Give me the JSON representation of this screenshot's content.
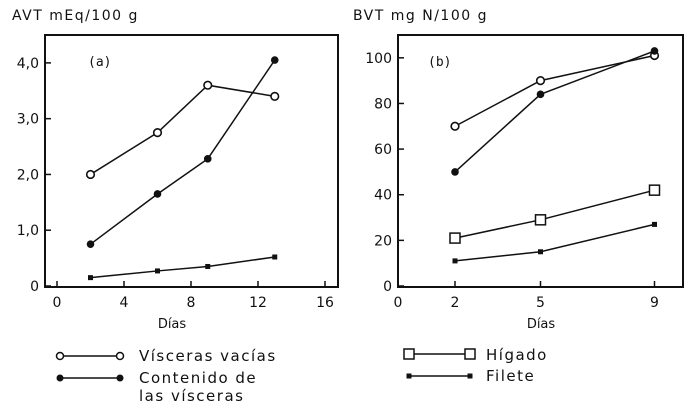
{
  "chart_data": [
    {
      "type": "line",
      "title": "AVT mEq/100 g",
      "panel_label": "(a)",
      "xlabel": "Días",
      "ylabel": "AVT mEq/100 g",
      "xlim": [
        0,
        16
      ],
      "ylim": [
        0,
        4.5
      ],
      "xticks": [
        0,
        4,
        8,
        12,
        16
      ],
      "xtick_labels": [
        "0",
        "4",
        "8",
        "12",
        "16"
      ],
      "yticks": [
        0,
        1,
        2,
        3,
        4
      ],
      "ytick_labels": [
        "0",
        "1,0",
        "2,0",
        "3,0",
        "4,0"
      ],
      "series": [
        {
          "name": "Vísceras vacías",
          "marker": "open-circle",
          "x": [
            2,
            6,
            9,
            13
          ],
          "values": [
            2.0,
            2.75,
            3.6,
            3.4
          ]
        },
        {
          "name": "Contenido de las vísceras",
          "marker": "filled-circle",
          "x": [
            2,
            6,
            9,
            13
          ],
          "values": [
            0.75,
            1.65,
            2.28,
            4.05
          ]
        },
        {
          "name": "Filete",
          "marker": "small-square",
          "x": [
            2,
            6,
            9,
            13
          ],
          "values": [
            0.15,
            0.27,
            0.35,
            0.52
          ]
        }
      ]
    },
    {
      "type": "line",
      "title": "BVT mg N/100 g",
      "panel_label": "(b)",
      "xlabel": "Días",
      "ylabel": "BVT mg N/100 g",
      "xlim": [
        0,
        10
      ],
      "ylim": [
        0,
        110
      ],
      "xticks": [
        0,
        2,
        5,
        9
      ],
      "xtick_labels": [
        "0",
        "2",
        "5",
        "9"
      ],
      "yticks": [
        0,
        20,
        40,
        60,
        80,
        100
      ],
      "ytick_labels": [
        "0",
        "20",
        "40",
        "60",
        "80",
        "100"
      ],
      "series": [
        {
          "name": "Vísceras vacías",
          "marker": "open-circle",
          "x": [
            2,
            5,
            9
          ],
          "values": [
            70,
            90,
            101
          ]
        },
        {
          "name": "Contenido de las vísceras",
          "marker": "filled-circle",
          "x": [
            2,
            5,
            9
          ],
          "values": [
            50,
            84,
            103
          ]
        },
        {
          "name": "Hígado",
          "marker": "open-square",
          "x": [
            2,
            5,
            9
          ],
          "values": [
            21,
            29,
            42
          ]
        },
        {
          "name": "Filete",
          "marker": "small-square",
          "x": [
            2,
            5,
            9
          ],
          "values": [
            11,
            15,
            27
          ]
        }
      ]
    }
  ],
  "legend": {
    "visceras_vacias": "Vísceras vacías",
    "contenido_line1": "Contenido de",
    "contenido_line2": "las vísceras",
    "higado": "Hígado",
    "filete": "Filete"
  }
}
